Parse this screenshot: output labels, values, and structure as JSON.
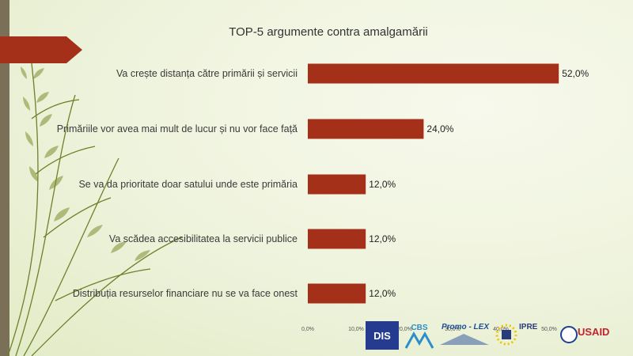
{
  "chart_data": {
    "type": "bar",
    "orientation": "horizontal",
    "title": "TOP-5 argumente contra amalgamării",
    "categories": [
      "Va crește distanța către primării și servicii",
      "Primăriile vor avea mai mult de lucur și nu vor face față",
      "Se va da prioritate doar satului unde este primăria",
      "Va scădea accesibilitatea la servicii publice",
      "Distribuția resurselor financiare nu se va face onest"
    ],
    "values": [
      52.0,
      24.0,
      12.0,
      12.0,
      12.0
    ],
    "data_labels": [
      "52,0%",
      "24,0%",
      "12,0%",
      "12,0%",
      "12,0%"
    ],
    "xlim": [
      0,
      60
    ],
    "xticks": [
      0,
      10,
      20,
      30,
      40,
      50
    ],
    "xtick_labels": [
      "0,0%",
      "10,0%",
      "20,0%",
      "30,0%",
      "40,0%",
      "50,0%"
    ],
    "bar_color": "#a5301a",
    "grid": false
  },
  "logos": {
    "dis": "DIS",
    "cbs": "CBS",
    "promo_lex": "Promo - LEX",
    "ipre": "IPRE",
    "usaid": "USAID"
  },
  "colors": {
    "accent": "#a5301a",
    "frond": "#5f6f22",
    "band": "#7a6f57"
  }
}
